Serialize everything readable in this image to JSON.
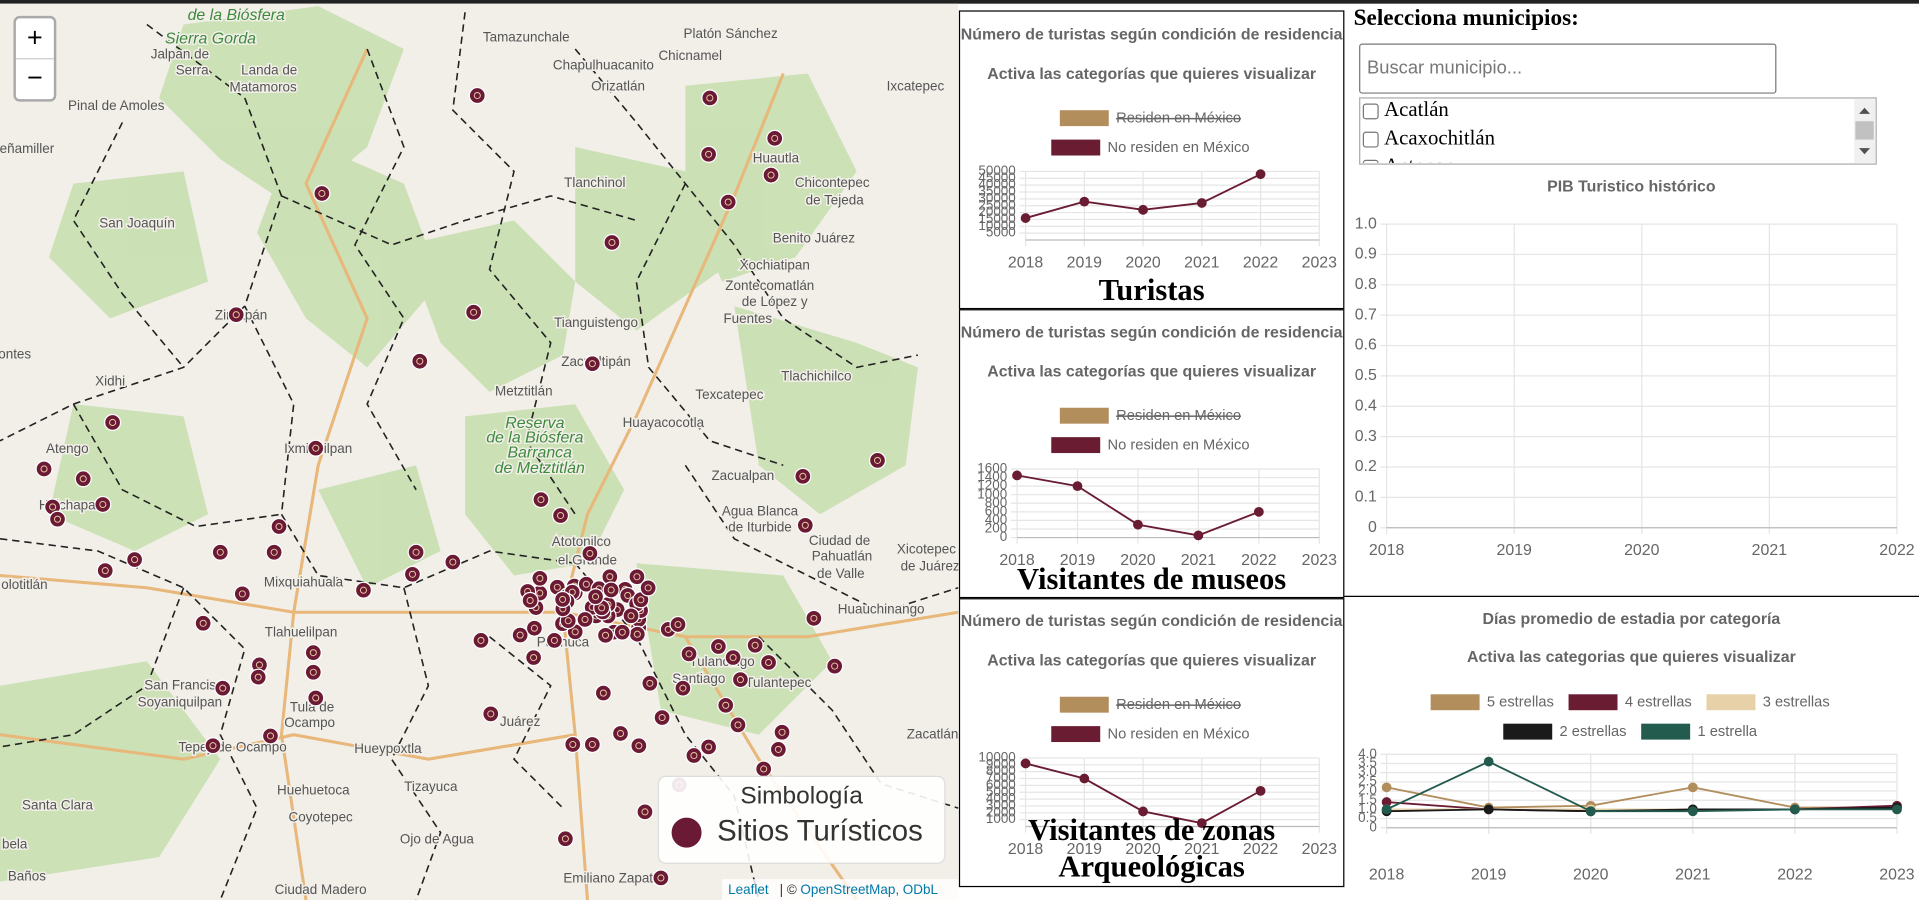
{
  "map": {
    "zoom_in": "+",
    "zoom_out": "−",
    "places": [
      "de la Biósfera",
      "Sierra Gorda",
      "Jalpan de",
      "Serra",
      "Landa de",
      "Matamoros",
      "Pinal de Amoles",
      "Tamazunchale",
      "Platón Sánchez",
      "Chicnamel",
      "Chapulhuacanito",
      "Orizatlán",
      "Ixcatepec",
      "eñamiller",
      "Tlanchinol",
      "Huautla",
      "Chicontepec",
      "de Tejeda",
      "San Joaquín",
      "Benito Juárez",
      "Xochiatipan",
      "Zontecomatlán",
      "de López y",
      "Fuentes",
      "Zimapán",
      "Tianguistengo",
      "Zacualtipán",
      "ontes",
      "Metztitlán",
      "Texcatepec",
      "Tlachichilco",
      "Huayacocotla",
      "Xidhi",
      "Reserva",
      "de la Biósfera",
      "Barranca",
      "de Metztitlán",
      "Ixmiquilpan",
      "Atengo",
      "Huichapan",
      "Zacualpan",
      "Agua Blanca",
      "de Iturbide",
      "Ciudad de",
      "Pahuatlán",
      "de Valle",
      "Xicotepec",
      "de Juárez",
      "Atotonilco",
      "el Grande",
      "Mixquiahuala",
      "olotitlán",
      "Huauchinango",
      "Tlahuelilpan",
      "Pachuca",
      "Tulancingo",
      "Santiago",
      "Tulantepec",
      "San Francisco",
      "Soyaniquilpan",
      "Tula de",
      "Ocampo",
      "Tepeji de Ocampo",
      "Hueypoxtla",
      "Zacatlán",
      "Huehuetoca",
      "Tizayuca",
      "Coyotepec",
      "Santa Clara",
      "Ojo de Agua",
      "Emiliano Zapata",
      "Ciudad Madero",
      "Juárez",
      "Baños",
      "bela"
    ],
    "legend": {
      "title": "Simbología",
      "label": "Sitios Turísticos"
    },
    "attribution": {
      "leaflet": "Leaflet",
      "separator": "| ©",
      "osm": "OpenStreetMap, ODbL"
    }
  },
  "panels": [
    {
      "type": "line",
      "title": "Número de turistas según condición de residencia",
      "subtitle": "Activa las categorías que quieres visualizar",
      "caption": "Turistas",
      "categories": [
        "2018",
        "2019",
        "2020",
        "2021",
        "2022",
        "2023"
      ],
      "series": [
        {
          "name": "Residen en México",
          "color": "#b38e5d",
          "hidden": true,
          "values": [
            null,
            null,
            null,
            null,
            null,
            null
          ]
        },
        {
          "name": "No residen en México",
          "color": "#691c32",
          "values": [
            16000,
            28000,
            22000,
            27000,
            48000,
            null
          ]
        }
      ],
      "ylim": [
        0,
        50000
      ],
      "yticks": [
        5000,
        10000,
        15000,
        20000,
        25000,
        30000,
        35000,
        40000,
        45000,
        50000
      ],
      "grid": true
    },
    {
      "type": "line",
      "title": "Número de turistas según condición de residencia",
      "subtitle": "Activa las categorías que quieres visualizar",
      "caption": "Visitantes de museos",
      "categories": [
        "2018",
        "2019",
        "2020",
        "2021",
        "2022",
        "2023"
      ],
      "series": [
        {
          "name": "Residen en México",
          "color": "#b38e5d",
          "hidden": true,
          "values": [
            null,
            null,
            null,
            null,
            null,
            null
          ]
        },
        {
          "name": "No residen en México",
          "color": "#691c32",
          "values": [
            1450,
            1200,
            300,
            50,
            600,
            null
          ]
        }
      ],
      "ylim": [
        0,
        1600
      ],
      "yticks": [
        0,
        200,
        400,
        600,
        800,
        1000,
        1200,
        1400,
        1600
      ],
      "grid": true
    },
    {
      "type": "line",
      "title": "Número de turistas según condición de residencia",
      "subtitle": "Activa las categorías que quieres visualizar",
      "caption": "Visitantes de zonas Arqueológicas",
      "categories": [
        "2018",
        "2019",
        "2020",
        "2021",
        "2022",
        "2023"
      ],
      "series": [
        {
          "name": "Residen en México",
          "color": "#b38e5d",
          "hidden": true,
          "values": [
            null,
            null,
            null,
            null,
            null,
            null
          ]
        },
        {
          "name": "No residen en México",
          "color": "#691c32",
          "values": [
            9200,
            7000,
            2200,
            500,
            5200,
            null
          ]
        }
      ],
      "ylim": [
        0,
        10000
      ],
      "yticks": [
        1000,
        2000,
        3000,
        4000,
        5000,
        6000,
        7000,
        8000,
        9000,
        10000
      ],
      "grid": true
    }
  ],
  "municipios": {
    "title": "Selecciona municipios:",
    "placeholder": "Buscar municipio...",
    "options": [
      "Acatlán",
      "Acaxochitlán",
      "Actopan"
    ]
  },
  "pib": {
    "type": "line",
    "title": "PIB Turistico histórico",
    "categories": [
      "2018",
      "2019",
      "2020",
      "2021",
      "2022"
    ],
    "series": [],
    "ylim": [
      0,
      1
    ],
    "yticks": [
      0,
      0.1,
      0.2,
      0.3,
      0.4,
      0.5,
      0.6,
      0.7,
      0.8,
      0.9,
      {
        "value": 1,
        "label": "1.0"
      }
    ],
    "grid": true
  },
  "estadia": {
    "type": "line",
    "title": "Días promedio de estadia por categoría",
    "subtitle": "Activa las categorias que quieres visualizar",
    "categories": [
      "2018",
      "2019",
      "2020",
      "2021",
      "2022",
      "2023"
    ],
    "series": [
      {
        "name": "5 estrellas",
        "color": "#b38e5d",
        "values": [
          2.2,
          1.1,
          1.2,
          2.2,
          1.1,
          1.1
        ]
      },
      {
        "name": "4 estrellas",
        "color": "#691c32",
        "values": [
          1.4,
          1.0,
          0.9,
          1.0,
          1.0,
          1.2
        ]
      },
      {
        "name": "3 estrellas",
        "color": "#e6d1a9",
        "values": [
          1.0,
          1.0,
          1.0,
          1.0,
          1.0,
          1.0
        ]
      },
      {
        "name": "2 estrellas",
        "color": "#1a1a1a",
        "values": [
          0.9,
          1.0,
          0.9,
          1.0,
          1.0,
          1.1
        ]
      },
      {
        "name": "1 estrella",
        "color": "#235b4e",
        "values": [
          1.0,
          3.6,
          0.9,
          0.9,
          1.0,
          1.0
        ]
      }
    ],
    "ylim": [
      0,
      4
    ],
    "yticks": [
      0,
      0.5,
      {
        "value": 1,
        "label": "1.0"
      },
      1.5,
      {
        "value": 2,
        "label": "2.0"
      },
      2.5,
      {
        "value": 3,
        "label": "3.0"
      },
      3.5,
      {
        "value": 4,
        "label": "4.0"
      }
    ],
    "grid": true
  }
}
